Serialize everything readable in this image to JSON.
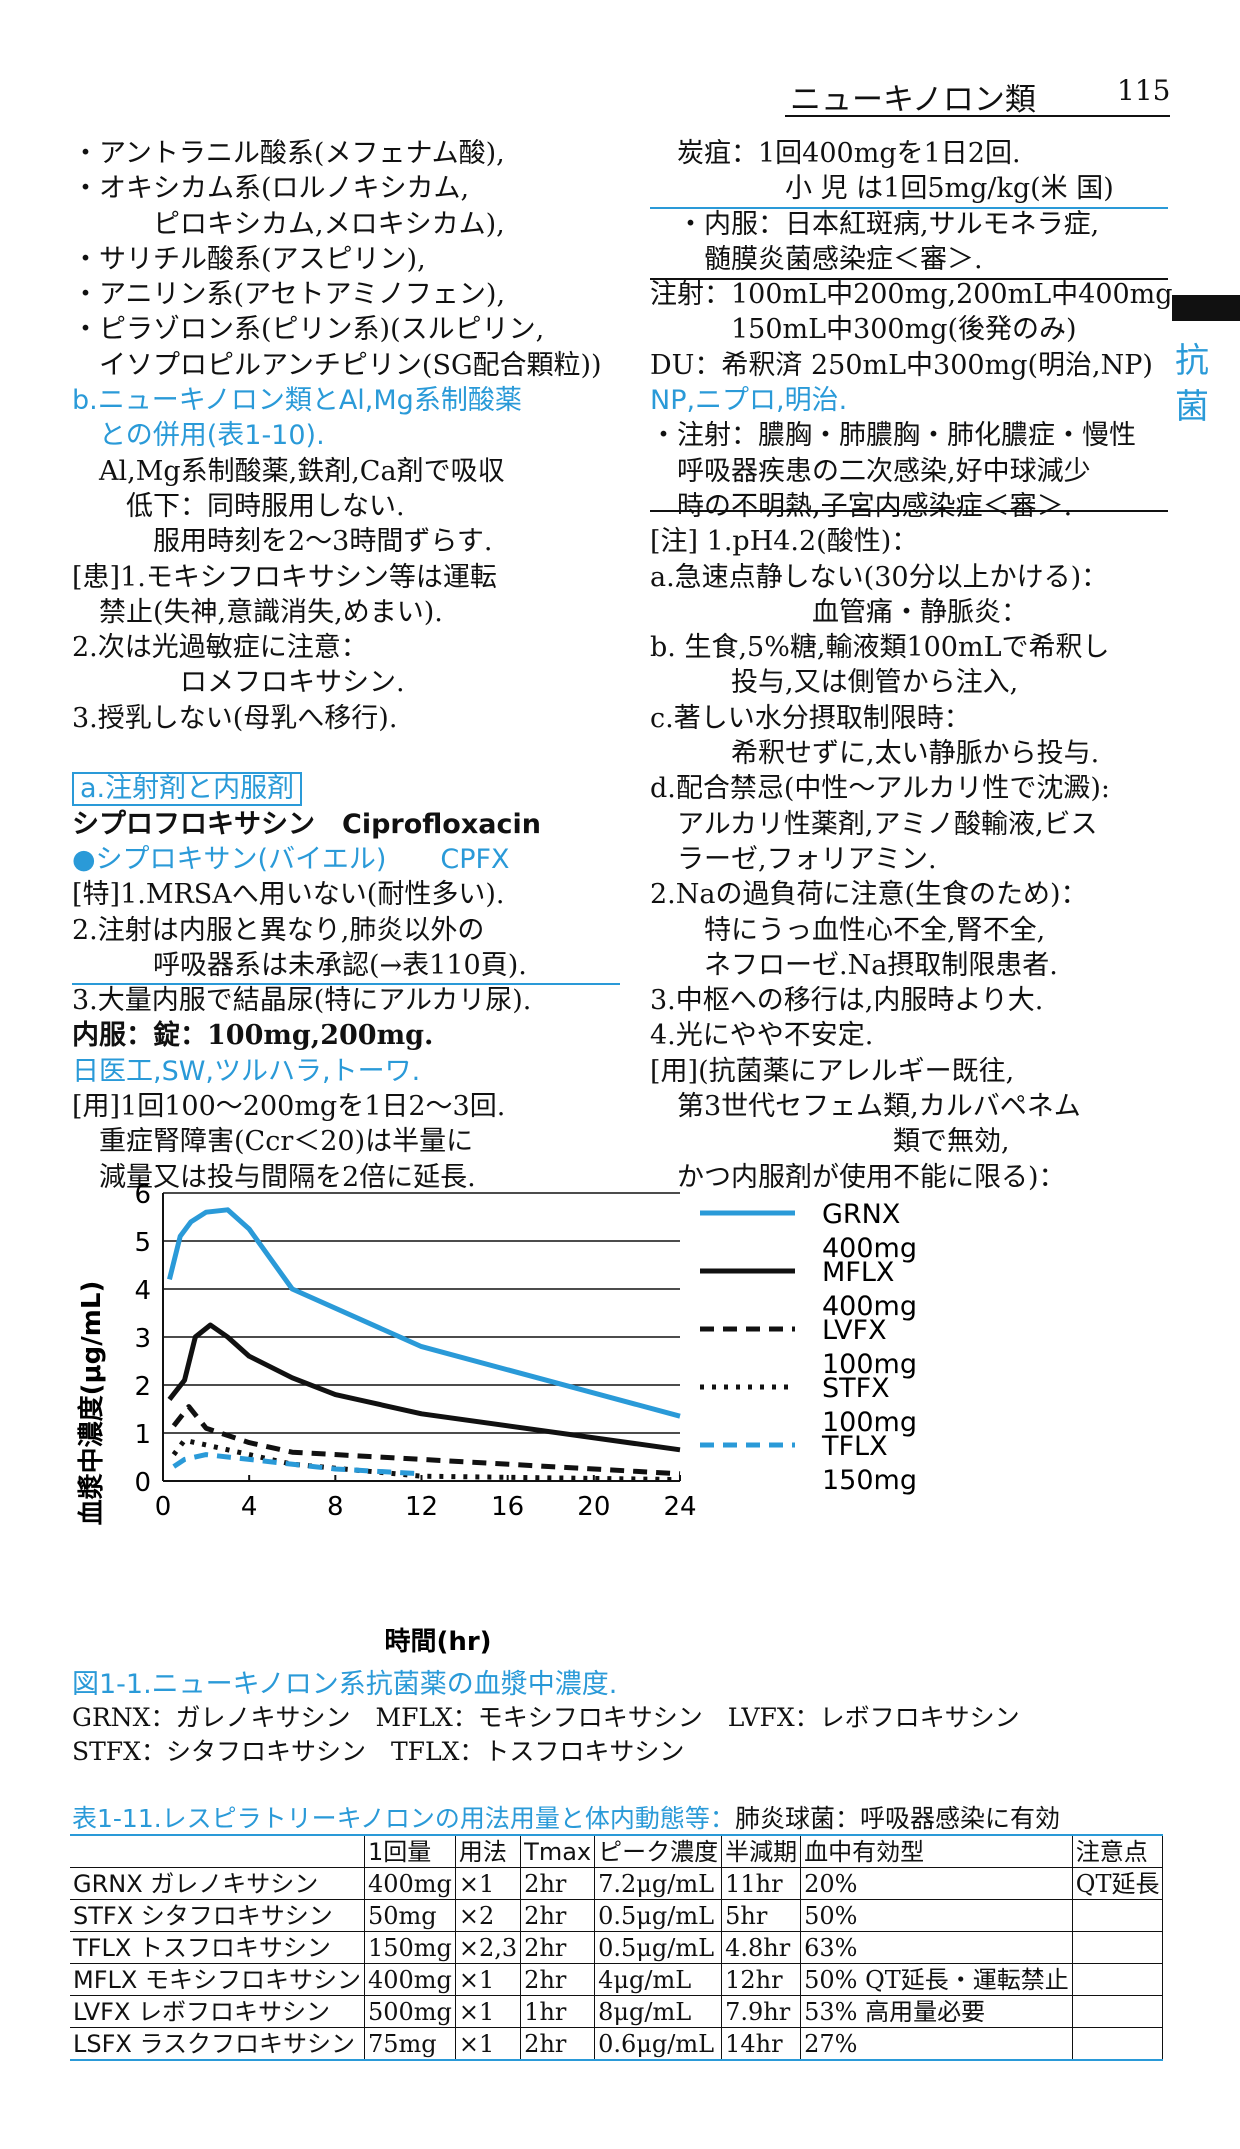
{
  "header": {
    "title": "ニューキノロン類",
    "page_number": "115",
    "side_tab": [
      "抗",
      "菌"
    ]
  },
  "left_column": [
    "・アントラニル酸系(メフェナム酸),",
    "・オキシカム系(ロルノキシカム,",
    "　　　ピロキシカム,メロキシカム),",
    "・サリチル酸系(アスピリン),",
    "・アニリン系(アセトアミノフェン),",
    "・ピラゾロン系(ピリン系)(スルピリン,",
    "　イソプロピルアンチピリン(SG配合顆粒))",
    "b.ニューキノロン類とAl,Mg系制酸薬",
    "　との併用(表1-10).",
    "　Al,Mg系制酸薬,鉄剤,Ca剤で吸収",
    "　　低下：同時服用しない.",
    "　　　服用時刻を2～3時間ずらす.",
    "[患]1.モキシフロキサシン等は運転",
    "　禁止(失神,意識消失,めまい).",
    " 2.次は光過敏症に注意：",
    "　　　　ロメフロキサシン.",
    " 3.授乳しない(母乳へ移行).",
    "",
    "a.注射剤と内服剤",
    "シプロフロキサシン　Ciprofloxacin",
    "●シプロキサン(バイエル)　　CPFX",
    "[特]1.MRSAへ用いない(耐性多い).",
    " 2.注射は内服と異なり,肺炎以外の",
    "　　　呼吸器系は未承認(→表110頁).",
    " 3.大量内服で結晶尿(特にアルカリ尿).",
    "内服：錠：100mg,200mg.",
    "日医工,SW,ツルハラ,トーワ.",
    "[用]1回100～200mgを1日2～3回.",
    "　重症腎障害(Ccr＜20)は半量に",
    "　減量又は投与間隔を2倍に延長."
  ],
  "right_column": [
    "　炭疽：1回400mgを1日2回.",
    "　　　　　小 児 は1回5mg/kg(米 国)",
    "　・内服：日本紅斑病,サルモネラ症,",
    "　　髄膜炎菌感染症＜審＞.",
    "注射：100mL中200mg,200mL中400mg.",
    "　　　150mL中300mg(後発のみ)",
    "DU：希釈済 250mL中300mg(明治,NP)",
    "NP,ニプロ,明治.",
    "・注射：膿胸・肺膿胸・肺化膿症・慢性",
    "　呼吸器疾患の二次感染,好中球減少",
    "　時の不明熱,子宮内感染症＜審＞.",
    "[注] 1.pH4.2(酸性)：",
    " a.急速点静しない(30分以上かける)：",
    "　　　　　　血管痛・静脈炎：",
    " b. 生食,5%糖,輸液類100mLで希釈し",
    "　　　投与,又は側管から注入,",
    " c.著しい水分摂取制限時：",
    "　　　希釈せずに,太い静脈から投与.",
    " d.配合禁忌(中性～アルカリ性で沈澱):",
    "　アルカリ性薬剤,アミノ酸輸液,ビス",
    "　ラーゼ,フォリアミン.",
    "2.Naの過負荷に注意(生食のため)：",
    "　　特にうっ血性心不全,腎不全,",
    "　　ネフローゼ.Na摂取制限患者.",
    "3.中枢への移行は,内服時より大.",
    "4.光にやや不安定.",
    "[用](抗菌薬にアレルギー既往,",
    "　第3世代セフェム類,カルバペネム",
    "　　　　　　　　　類で無効,",
    "　かつ内服剤が使用不能に限る)："
  ],
  "chart_data": {
    "type": "line",
    "xlabel": "時間(hr)",
    "ylabel": "血漿中濃度(μg/mL)",
    "xlim": [
      0,
      24
    ],
    "ylim": [
      0,
      6
    ],
    "xticks": [
      0,
      4,
      8,
      12,
      16,
      20,
      24
    ],
    "yticks": [
      0,
      1,
      2,
      3,
      4,
      5,
      6
    ],
    "grid": "horizontal",
    "legend_position": "right",
    "series": [
      {
        "name": "GRNX",
        "name2": "400mg",
        "style": "solid",
        "color": "#2a9ad8",
        "x": [
          0.3,
          0.8,
          1.3,
          2,
          3,
          4,
          6,
          12,
          24
        ],
        "y": [
          4.2,
          5.1,
          5.4,
          5.6,
          5.65,
          5.25,
          4.0,
          2.8,
          1.35
        ]
      },
      {
        "name": "MFLX",
        "name2": "400mg",
        "style": "solid",
        "color": "#111111",
        "x": [
          0.3,
          1,
          1.5,
          2.2,
          3,
          4,
          6,
          8,
          12,
          24
        ],
        "y": [
          1.7,
          2.1,
          3.0,
          3.25,
          3.0,
          2.6,
          2.15,
          1.8,
          1.4,
          0.65
        ]
      },
      {
        "name": "LVFX",
        "name2": "100mg",
        "style": "dash",
        "color": "#111111",
        "x": [
          0.5,
          1.2,
          2,
          4,
          6,
          12,
          24
        ],
        "y": [
          1.15,
          1.55,
          1.1,
          0.8,
          0.6,
          0.45,
          0.15
        ]
      },
      {
        "name": "STFX",
        "name2": "100mg",
        "style": "dot",
        "color": "#111111",
        "x": [
          0.5,
          1,
          2,
          4,
          6,
          12,
          24
        ],
        "y": [
          0.55,
          0.85,
          0.75,
          0.55,
          0.35,
          0.1,
          0.03
        ]
      },
      {
        "name": "TFLX",
        "name2": "150mg",
        "style": "dash",
        "color": "#2a9ad8",
        "x": [
          0.5,
          1,
          2,
          4,
          8,
          12
        ],
        "y": [
          0.3,
          0.45,
          0.55,
          0.45,
          0.25,
          0.15
        ]
      }
    ]
  },
  "figure_caption": "図1-1.ニューキノロン系抗菌薬の血漿中濃度.",
  "abbrev_line1": "GRNX：ガレノキサシン　MFLX：モキシフロキサシン　LVFX：レボフロキサシン",
  "abbrev_line2": "STFX：シタフロキサシン　TFLX：トスフロキサシン",
  "table": {
    "title": "表1-11.レスピラトリーキノロンの用法用量と体内動態等：",
    "title_suffix": "肺炎球菌：呼吸器感染に有効",
    "headers": [
      "",
      "1回量",
      "用法",
      "Tmax",
      "ピーク濃度",
      "半減期",
      "血中有効型",
      "注意点"
    ],
    "rows": [
      [
        "GRNX ガレノキサシン",
        "400mg",
        "×1",
        "2hr",
        "7.2μg/mL",
        "11hr",
        "20%",
        "QT延長"
      ],
      [
        "STFX シタフロキサシン",
        "50mg",
        "×2",
        "2hr",
        "0.5μg/mL",
        "5hr",
        "50%",
        ""
      ],
      [
        "TFLX トスフロキサシン",
        "150mg",
        "×2,3",
        "2hr",
        "0.5μg/mL",
        "4.8hr",
        "63%",
        ""
      ],
      [
        "MFLX モキシフロキサシン",
        "400mg",
        "×1",
        "2hr",
        "4μg/mL",
        "12hr",
        "50% QT延長・運転禁止",
        ""
      ],
      [
        "LVFX レボフロキサシン",
        "500mg",
        "×1",
        "1hr",
        "8μg/mL",
        "7.9hr",
        "53% 高用量必要",
        ""
      ],
      [
        "LSFX ラスクフロキサシン",
        "75mg",
        "×1",
        "2hr",
        "0.6μg/mL",
        "14hr",
        "27%",
        ""
      ]
    ]
  }
}
